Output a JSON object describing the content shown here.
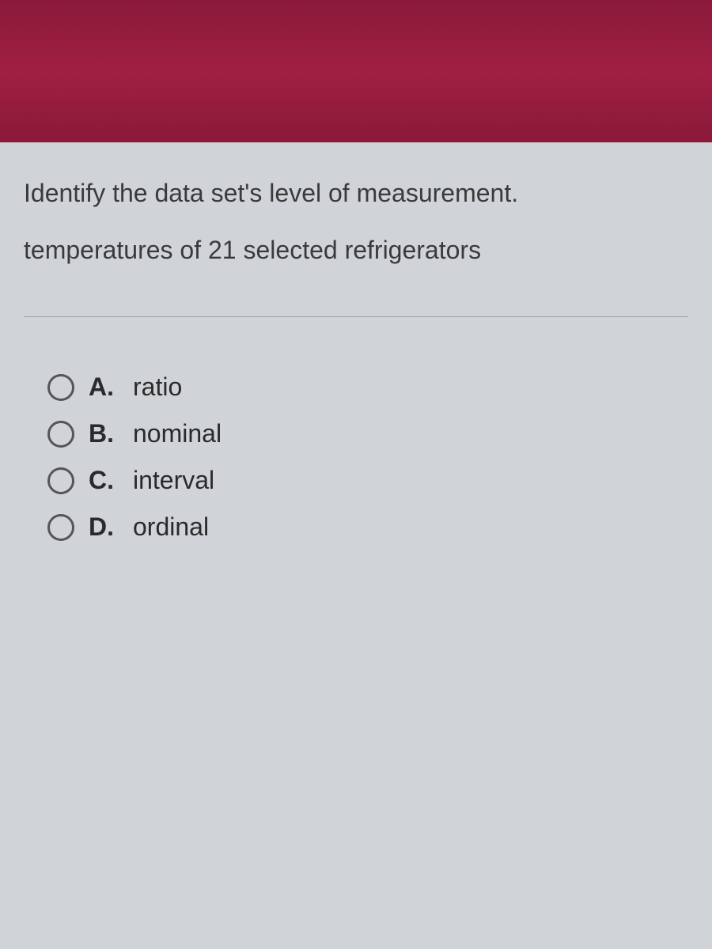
{
  "header": {
    "background_gradient": [
      "#8a1a3a",
      "#a01e42",
      "#8a1a3a"
    ]
  },
  "question": {
    "prompt": "Identify the data set's level of measurement.",
    "context": "temperatures of 21 selected refrigerators"
  },
  "options": [
    {
      "letter": "A.",
      "text": "ratio",
      "selected": false
    },
    {
      "letter": "B.",
      "text": "nominal",
      "selected": false
    },
    {
      "letter": "C.",
      "text": "interval",
      "selected": false
    },
    {
      "letter": "D.",
      "text": "ordinal",
      "selected": false
    }
  ],
  "colors": {
    "page_background": "#c8ccd0",
    "content_background": "#d0d4d8",
    "text_color": "#3a3a3a",
    "option_text_color": "#2a2a2a",
    "radio_border": "#555555",
    "divider_color": "#a0a4a8"
  },
  "typography": {
    "question_fontsize": 32,
    "option_fontsize": 32,
    "option_letter_weight": 700
  }
}
